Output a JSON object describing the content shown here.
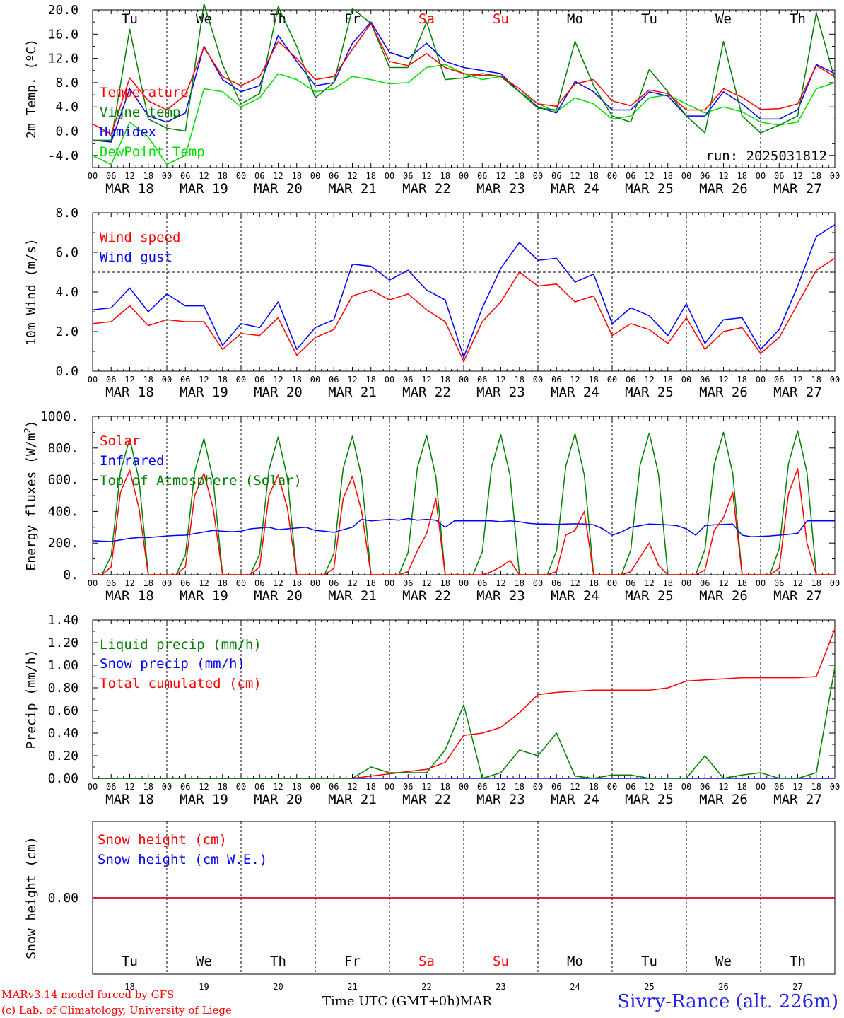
{
  "station": "Sivry-Rance (alt. 226m)",
  "credits": [
    "MARv3.14 model forced by GFS",
    "(c) Lab. of Climatology, University of Liege"
  ],
  "time_axis_label": "Time UTC (GMT+0h)",
  "month_label": "MAR",
  "colors": {
    "red": "#ff0000",
    "blue": "#0000ff",
    "green": "#008000",
    "lightgreen": "#00dd00",
    "weekend": "#ff0000"
  },
  "chart_data": {
    "days": [
      "MAR 18",
      "MAR 19",
      "MAR 20",
      "MAR 21",
      "MAR 22",
      "MAR 23",
      "MAR 24",
      "MAR 25",
      "MAR 26",
      "MAR 27"
    ],
    "weekdays": [
      "Tu",
      "We",
      "Th",
      "Fr",
      "Sa",
      "Su",
      "Mo",
      "Tu",
      "We",
      "Th"
    ],
    "day_numbers": [
      "18",
      "19",
      "20",
      "21",
      "22",
      "23",
      "24",
      "25",
      "26",
      "27"
    ],
    "hour_ticks": [
      "00",
      "06",
      "12",
      "18"
    ],
    "panels": [
      {
        "type": "line",
        "ylabel": "2m Temp. (ºC)",
        "ylim": [
          -6,
          20
        ],
        "yticks": [
          "20.0",
          "16.0",
          "12.0",
          "8.0",
          "4.0",
          "0.0",
          "-4.0"
        ],
        "ytick_values": [
          20,
          16,
          12,
          8,
          4,
          0,
          -4
        ],
        "reference_line": 0,
        "annotation": "run: 2025031812",
        "x_hours": [
          0,
          6,
          12,
          18,
          24,
          30,
          36,
          42,
          48,
          54,
          60,
          66,
          72,
          78,
          84,
          90,
          96,
          102,
          108,
          114,
          120,
          126,
          132,
          138,
          144,
          150,
          156,
          162,
          168,
          174,
          180,
          186,
          192,
          198,
          204,
          210,
          216,
          222,
          228,
          234,
          240
        ],
        "series": [
          {
            "name": "Temperature",
            "color": "#ff0000",
            "values": [
              1.2,
              -0.5,
              8.8,
              5,
              3.5,
              6,
              13.8,
              9,
              7.5,
              9,
              14.8,
              12,
              8.5,
              9,
              13.5,
              17.8,
              11.5,
              10.8,
              12.8,
              10.5,
              9.5,
              9.2,
              9.1,
              7,
              4.5,
              4.1,
              7.8,
              8.5,
              5,
              4.2,
              6.8,
              6.2,
              3.5,
              3.5,
              7,
              5.6,
              3.6,
              3.7,
              4.5,
              10.8,
              9
            ]
          },
          {
            "name": "Vigne temp",
            "color": "#008000",
            "values": [
              -1.5,
              -1.5,
              16.8,
              2,
              0.5,
              0,
              21,
              11,
              4.5,
              6.2,
              20.5,
              14,
              5.5,
              8,
              20.2,
              17.8,
              10.5,
              10.5,
              18,
              8.5,
              8.8,
              9.5,
              9,
              6.5,
              3.8,
              3.5,
              14.8,
              7.5,
              2.5,
              1.5,
              10.2,
              6.5,
              2.5,
              -0.3,
              14.8,
              2.5,
              -0.3,
              1,
              2.5,
              19.5,
              8.5
            ]
          },
          {
            "name": "Humidex",
            "color": "#0000ff",
            "values": [
              -1.5,
              -1.8,
              7,
              2.5,
              1.5,
              3,
              14,
              8.5,
              6.5,
              7.5,
              15.8,
              11.5,
              7.5,
              8,
              14.5,
              18,
              13,
              12,
              14.5,
              11.5,
              10.5,
              10,
              9.5,
              6.5,
              4,
              3,
              8.2,
              6.5,
              3.5,
              3.5,
              6.5,
              5.8,
              2.5,
              2.5,
              6.5,
              4.5,
              2,
              2,
              3.5,
              11,
              9.5
            ]
          },
          {
            "name": "DewPoint Temp",
            "color": "#00dd00",
            "values": [
              -4,
              -5.5,
              1.5,
              -1,
              -5.5,
              -4,
              7,
              6.5,
              4,
              5.5,
              9.5,
              8.5,
              6.5,
              7,
              9,
              8.5,
              7.8,
              8,
              10.5,
              11,
              9.5,
              8.5,
              9,
              6.5,
              4.5,
              3.2,
              5.5,
              4.5,
              2,
              2.5,
              5.5,
              6,
              4.5,
              3,
              4,
              3.2,
              1.5,
              1,
              1.5,
              7,
              8
            ]
          }
        ]
      },
      {
        "type": "line",
        "ylabel": "10m Wind (m/s)",
        "ylim": [
          0,
          8
        ],
        "yticks": [
          "8.0",
          "6.0",
          "4.0",
          "2.0",
          "0.0"
        ],
        "ytick_values": [
          8,
          6,
          4,
          2,
          0
        ],
        "reference_line": 5,
        "x_hours": [
          0,
          6,
          12,
          18,
          24,
          30,
          36,
          42,
          48,
          54,
          60,
          66,
          72,
          78,
          84,
          90,
          96,
          102,
          108,
          114,
          120,
          126,
          132,
          138,
          144,
          150,
          156,
          162,
          168,
          174,
          180,
          186,
          192,
          198,
          204,
          210,
          216,
          222,
          228,
          234,
          240
        ],
        "series": [
          {
            "name": "Wind speed",
            "color": "#ff0000",
            "values": [
              2.4,
              2.5,
              3.3,
              2.3,
              2.6,
              2.5,
              2.5,
              1.1,
              1.9,
              1.8,
              2.7,
              0.8,
              1.7,
              2.1,
              3.8,
              4.1,
              3.6,
              3.9,
              3.1,
              2.5,
              0.5,
              2.5,
              3.5,
              5,
              4.3,
              4.4,
              3.5,
              3.8,
              1.8,
              2.4,
              2.1,
              1.4,
              2.7,
              1.1,
              2,
              2.2,
              0.9,
              1.7,
              3.4,
              5.1,
              5.7
            ]
          },
          {
            "name": "Wind gust",
            "color": "#0000ff",
            "values": [
              3.1,
              3.2,
              4.2,
              3,
              3.9,
              3.3,
              3.3,
              1.3,
              2.4,
              2.2,
              3.5,
              1.1,
              2.2,
              2.6,
              5.4,
              5.3,
              4.6,
              5.1,
              4.1,
              3.6,
              0.7,
              3.2,
              5.2,
              6.5,
              5.6,
              5.7,
              4.5,
              4.9,
              2.4,
              3.2,
              2.8,
              1.8,
              3.4,
              1.4,
              2.6,
              2.7,
              1.1,
              2.1,
              4.3,
              6.8,
              7.4
            ]
          }
        ]
      },
      {
        "type": "line",
        "ylabel": "Energy fluxes (W/m²)",
        "ylim": [
          0,
          1000
        ],
        "yticks": [
          "1000.",
          "800.",
          "600.",
          "400.",
          "200.",
          "0."
        ],
        "ytick_values": [
          1000,
          800,
          600,
          400,
          200,
          0
        ],
        "x_hours": [
          0,
          3,
          6,
          9,
          12,
          15,
          18,
          21,
          24,
          27,
          30,
          33,
          36,
          39,
          42,
          45,
          48,
          51,
          54,
          57,
          60,
          63,
          66,
          69,
          72,
          75,
          78,
          81,
          84,
          87,
          90,
          93,
          96,
          99,
          102,
          105,
          108,
          111,
          114,
          117,
          120,
          123,
          126,
          129,
          132,
          135,
          138,
          141,
          144,
          147,
          150,
          153,
          156,
          159,
          162,
          165,
          168,
          171,
          174,
          177,
          180,
          183,
          186,
          189,
          192,
          195,
          198,
          201,
          204,
          207,
          210,
          213,
          216,
          219,
          222,
          225,
          228,
          231,
          234,
          237,
          240
        ],
        "series": [
          {
            "name": "Solar",
            "color": "#ff0000",
            "values": [
              0,
              0,
              50,
              520,
              660,
              420,
              0,
              0,
              0,
              0,
              50,
              500,
              640,
              420,
              0,
              0,
              0,
              0,
              50,
              500,
              630,
              420,
              0,
              0,
              0,
              0,
              40,
              480,
              620,
              400,
              0,
              0,
              0,
              0,
              20,
              150,
              260,
              480,
              0,
              0,
              0,
              0,
              0,
              20,
              50,
              90,
              0,
              0,
              0,
              0,
              20,
              250,
              280,
              400,
              0,
              0,
              0,
              0,
              20,
              110,
              200,
              60,
              0,
              0,
              0,
              0,
              30,
              280,
              360,
              520,
              0,
              0,
              0,
              0,
              40,
              510,
              670,
              200,
              0,
              0,
              0
            ]
          },
          {
            "name": "Infrared",
            "color": "#0000ff",
            "values": [
              215,
              212,
              210,
              220,
              230,
              235,
              235,
              240,
              245,
              248,
              250,
              260,
              270,
              280,
              275,
              272,
              275,
              290,
              295,
              300,
              285,
              290,
              295,
              300,
              280,
              275,
              268,
              285,
              300,
              350,
              340,
              345,
              350,
              345,
              355,
              345,
              350,
              345,
              300,
              340,
              340,
              340,
              340,
              340,
              335,
              340,
              335,
              325,
              320,
              320,
              318,
              320,
              322,
              320,
              315,
              290,
              250,
              270,
              300,
              310,
              320,
              318,
              315,
              310,
              290,
              250,
              310,
              315,
              318,
              320,
              250,
              240,
              242,
              245,
              250,
              255,
              262,
              340,
              340,
              340,
              340
            ]
          },
          {
            "name": "Top of Atmosphere (Solar)",
            "color": "#008000",
            "values": [
              0,
              0,
              120,
              650,
              860,
              600,
              0,
              0,
              0,
              0,
              125,
              650,
              860,
              600,
              0,
              0,
              0,
              0,
              130,
              660,
              870,
              610,
              0,
              0,
              0,
              0,
              135,
              670,
              875,
              615,
              0,
              0,
              0,
              0,
              140,
              675,
              880,
              620,
              0,
              0,
              0,
              0,
              145,
              680,
              885,
              625,
              0,
              0,
              0,
              0,
              150,
              685,
              890,
              630,
              0,
              0,
              0,
              0,
              155,
              690,
              895,
              635,
              0,
              0,
              0,
              0,
              160,
              695,
              900,
              640,
              0,
              0,
              0,
              0,
              165,
              700,
              910,
              645,
              0,
              0,
              0
            ]
          }
        ]
      },
      {
        "type": "line",
        "ylabel": "Precip (mm/h)",
        "ylim": [
          0,
          1.4
        ],
        "yticks": [
          "1.40",
          "1.20",
          "1.00",
          "0.80",
          "0.60",
          "0.40",
          "0.20",
          "0.00"
        ],
        "ytick_values": [
          1.4,
          1.2,
          1,
          0.8,
          0.6,
          0.4,
          0.2,
          0
        ],
        "x_hours": [
          0,
          6,
          12,
          18,
          24,
          30,
          36,
          42,
          48,
          54,
          60,
          66,
          72,
          78,
          84,
          90,
          96,
          102,
          108,
          114,
          120,
          126,
          132,
          138,
          144,
          150,
          156,
          162,
          168,
          174,
          180,
          186,
          192,
          198,
          204,
          210,
          216,
          222,
          228,
          234,
          240
        ],
        "series": [
          {
            "name": "Liquid precip (mm/h)",
            "color": "#008000",
            "values": [
              0,
              0,
              0,
              0,
              0,
              0,
              0,
              0,
              0,
              0,
              0,
              0,
              0,
              0,
              0,
              0.1,
              0.05,
              0.05,
              0.05,
              0.25,
              0.65,
              0,
              0.05,
              0.25,
              0.2,
              0.4,
              0.02,
              0,
              0.03,
              0.03,
              0,
              0,
              0,
              0.2,
              0,
              0.03,
              0.05,
              0,
              0,
              0.05,
              0.98
            ]
          },
          {
            "name": "Snow precip (mm/h)",
            "color": "#0000ff",
            "values": [
              0,
              0,
              0,
              0,
              0,
              0,
              0,
              0,
              0,
              0,
              0,
              0,
              0,
              0,
              0,
              0,
              0,
              0,
              0,
              0,
              0,
              0,
              0,
              0,
              0,
              0,
              0,
              0,
              0,
              0,
              0,
              0,
              0,
              0,
              0,
              0,
              0,
              0,
              0,
              0,
              0
            ]
          },
          {
            "name": "Total cumulated (cm)",
            "color": "#ff0000",
            "values": [
              0,
              0,
              0,
              0,
              0,
              0,
              0,
              0,
              0,
              0,
              0,
              0,
              0,
              0,
              0,
              0.02,
              0.04,
              0.06,
              0.08,
              0.14,
              0.38,
              0.4,
              0.45,
              0.58,
              0.74,
              0.76,
              0.77,
              0.78,
              0.78,
              0.78,
              0.78,
              0.8,
              0.86,
              0.87,
              0.88,
              0.89,
              0.89,
              0.89,
              0.89,
              0.9,
              1.32
            ]
          }
        ]
      },
      {
        "type": "line",
        "ylabel": "Snow height (cm)",
        "yticks": [
          "0.00"
        ],
        "series": [
          {
            "name": "Snow height (cm)",
            "color": "#ff0000",
            "values": [
              0,
              0
            ]
          },
          {
            "name": "Snow height (cm W.E.)",
            "color": "#0000ff",
            "values": [
              0,
              0
            ]
          }
        ]
      }
    ]
  }
}
